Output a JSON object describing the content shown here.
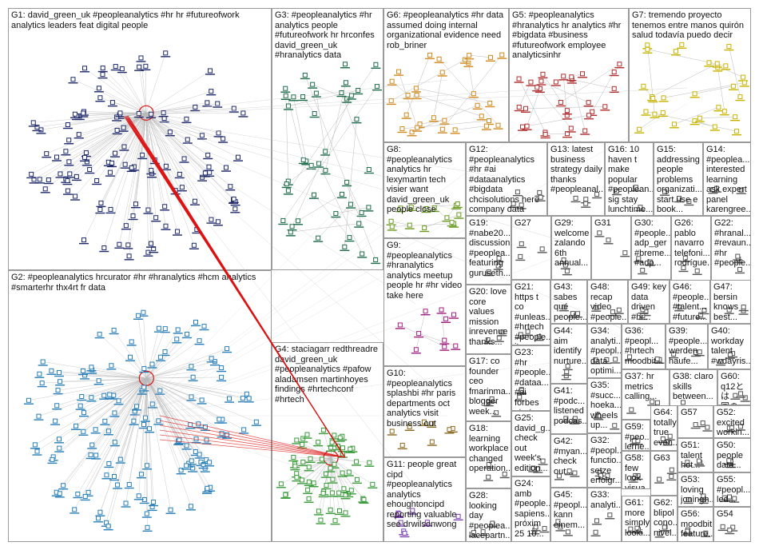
{
  "groups": [
    {
      "id": "G1",
      "label": "G1: david_green_uk #peopleanalytics #hr hr #futureofwork\nanalytics leaders feat digital people",
      "color": "#1f2a6b",
      "nodes": 120,
      "hub": true
    },
    {
      "id": "G2",
      "label": "G2: #peopleanalytics hrcurator #hr #hranalytics #hcm analytics\n#smarterhr thx4rt fr data",
      "color": "#2a7fb8",
      "nodes": 140,
      "hub": true
    },
    {
      "id": "G3",
      "label": "G3: #peopleanalytics #hr\nanalytics people\n#futureofwork hr hrconfes\ndavid_green_uk\n#hranalytics data",
      "color": "#1e6b4a",
      "nodes": 45,
      "hub": false
    },
    {
      "id": "G4",
      "label": "G4: staciagarr redthreadre\ndavid_green_uk\n#peopleanalytics #pafow\naladamsen martinhoyes\nfindings #hrtechconf\n#hrtech",
      "color": "#3a9a3a",
      "nodes": 60,
      "hub": true
    },
    {
      "id": "G5",
      "label": "G5: #peopleanalytics\n#hranalytics hr analytics #hr\n#bigdata #business\n#futureofwork employee\nanalyticsinhr",
      "color": "#b03030",
      "nodes": 30,
      "hub": false
    },
    {
      "id": "G6",
      "label": "G6: #peopleanalytics #hr data\nassumed doing internal\norganizational evidence need\nrob_briner",
      "color": "#d08a20",
      "nodes": 30,
      "hub": false
    },
    {
      "id": "G7",
      "label": "G7: tremendo proyecto\ntenemos entre manos quirón\nsalud todavía puedo decir",
      "color": "#c8b400",
      "nodes": 30,
      "hub": false
    },
    {
      "id": "G8",
      "label": "G8:\n#peopleanalytics\nanalytics hr\nlexymartin tech\nvisier want\ndavid_green_uk\npeople close",
      "color": "#6a9a20",
      "nodes": 14,
      "hub": false
    },
    {
      "id": "G9",
      "label": "G9:\n#peopleanalytics\n#hranalytics\nanalytics meetup\npeople hr #hr video\ntake here",
      "color": "#a02080",
      "nodes": 10,
      "hub": false
    },
    {
      "id": "G10",
      "label": "G10:\n#peopleanalytics\nsplashbi #hr paris\ndepartments oct\nanalytics visit\nbusiness out",
      "color": "#8a6a20",
      "nodes": 8,
      "hub": false
    },
    {
      "id": "G11",
      "label": "G11: people great\ncipd\n#peopleanalytics\nanalytics\nehoughtoncipd\nreporting valuable\nsee drwilsonwong",
      "color": "#7a40b0",
      "nodes": 8,
      "hub": false
    },
    {
      "id": "G12",
      "label": "G12:\n#peopleanalytics\n#hr #ai\n#dataanalytics\n#bigdata\nchcisolutions here\ncompany data",
      "color": "#555555",
      "nodes": 5,
      "hub": false
    },
    {
      "id": "G13",
      "label": "G13: latest\nbusiness\nstrategy daily\nthanks\n#peopleanal...",
      "color": "#555555",
      "nodes": 4,
      "hub": false
    },
    {
      "id": "G14",
      "label": "G14:\n#peoplea...\ninterested\nlearning\nask expert\npanel\nkarengree...",
      "color": "#555555",
      "nodes": 3,
      "hub": false
    },
    {
      "id": "G15",
      "label": "G15:\naddressing\npeople\nproblems\norganizati...\nstart use e\nbook...",
      "color": "#555555",
      "nodes": 3,
      "hub": false
    },
    {
      "id": "G16",
      "label": "G16: 10\nhaven t\nmake\npopular\n#peoplean...\nsig stay\nlunchtime...",
      "color": "#555555",
      "nodes": 3,
      "hub": false
    },
    {
      "id": "G17",
      "label": "G17: co\nfounder\nceo\nfmarinma...\nblogger\nweek...",
      "color": "#555555",
      "nodes": 3,
      "hub": false
    },
    {
      "id": "G18",
      "label": "G18:\nlearning\nworkplace\nchanged\noperation...",
      "color": "#555555",
      "nodes": 3,
      "hub": false
    },
    {
      "id": "G19",
      "label": "G19:\n#nabe20...\ndiscussion\n#peoplea...\nfeaturing\nguruseth...",
      "color": "#555555",
      "nodes": 3,
      "hub": false
    },
    {
      "id": "G20",
      "label": "G20: love\ncore\nvalues\nmission\ninrevenue\nthanks...",
      "color": "#555555",
      "nodes": 3,
      "hub": false
    },
    {
      "id": "G21",
      "label": "G21:\nhttps t co\n#unleas...\n#hrtech\n#people...\nitunes...",
      "color": "#555555",
      "nodes": 3,
      "hub": false
    },
    {
      "id": "G22",
      "label": "G22:\n#hranal...\n#revaun...\n#hr\n#people...",
      "color": "#555555",
      "nodes": 3,
      "hub": false
    },
    {
      "id": "G23",
      "label": "G23: #hr\n#people...\n#dataa...\n#ai\nforbes\nstrategy...",
      "color": "#555555",
      "nodes": 3,
      "hub": false
    },
    {
      "id": "G24",
      "label": "G24:\namb\n#people...\nsapiens...\npróxim\n25 10...",
      "color": "#555555",
      "nodes": 3,
      "hub": false
    },
    {
      "id": "G25",
      "label": "G25:\ndavid_g...\ncheck\nout\nweek's\nedition...",
      "color": "#555555",
      "nodes": 3,
      "hub": false
    },
    {
      "id": "G26",
      "label": "G26:\npablo\nnavarro\ntelefoni...\nrodrígue...",
      "color": "#555555",
      "nodes": 3,
      "hub": false
    },
    {
      "id": "G27",
      "label": "G27",
      "color": "#555555",
      "nodes": 3,
      "hub": false
    },
    {
      "id": "G28",
      "label": "G28:\nlooking\nday\n#peoplea...\nlacepartn...",
      "color": "#555555",
      "nodes": 3,
      "hub": false
    },
    {
      "id": "G29",
      "label": "G29:\nwelcome\nzalando\n6th\nannual...",
      "color": "#555555",
      "nodes": 3,
      "hub": false
    },
    {
      "id": "G30",
      "label": "G30:\n#people...\nadp_ger\n#breme...\n#adp...",
      "color": "#555555",
      "nodes": 3,
      "hub": false
    },
    {
      "id": "G31",
      "label": "G31",
      "color": "#555555",
      "nodes": 3,
      "hub": false
    },
    {
      "id": "G32",
      "label": "G32:\n#peopl...\nfunctio...\nsetze\nerfolgr...",
      "color": "#555555",
      "nodes": 3,
      "hub": false
    },
    {
      "id": "G33",
      "label": "G33:\nanalyti...",
      "color": "#555555",
      "nodes": 3,
      "hub": false
    },
    {
      "id": "G34",
      "label": "G34:\nanalyti...\n#peopl...\ndata\noptimi...",
      "color": "#555555",
      "nodes": 3,
      "hub": false
    },
    {
      "id": "G35",
      "label": "G35:\n#succ...\nhoeka...\nwheels\nup...",
      "color": "#555555",
      "nodes": 3,
      "hub": false
    },
    {
      "id": "G36",
      "label": "G36:\n#peopl...\n#hrtech\nmoodbit...",
      "color": "#555555",
      "nodes": 3,
      "hub": false
    },
    {
      "id": "G37",
      "label": "G37: hr\nmetrics\ncalling...",
      "color": "#555555",
      "nodes": 3,
      "hub": false
    },
    {
      "id": "G38",
      "label": "G38: claro\nskills\nbetween...",
      "color": "#555555",
      "nodes": 3,
      "hub": false
    },
    {
      "id": "G39",
      "label": "G39:\n#people...\nwerden\nhaufe...",
      "color": "#555555",
      "nodes": 3,
      "hub": false
    },
    {
      "id": "G40",
      "label": "G40:\nworkday\ntalent\n#wdayris...",
      "color": "#555555",
      "nodes": 3,
      "hub": false
    },
    {
      "id": "G41",
      "label": "G41:\n#podc...\nlistened\npodcas...",
      "color": "#555555",
      "nodes": 3,
      "hub": false
    },
    {
      "id": "G42",
      "label": "G42:\n#myan...\ncheck\nout...",
      "color": "#555555",
      "nodes": 3,
      "hub": false
    },
    {
      "id": "G43",
      "label": "G43:\nsabes\nqué\npeople...",
      "color": "#555555",
      "nodes": 3,
      "hub": false
    },
    {
      "id": "G44",
      "label": "G44:\naim\nidentify\nnurture...",
      "color": "#555555",
      "nodes": 3,
      "hub": false
    },
    {
      "id": "G45",
      "label": "G45:\n#peopl...\nkann\neinem...",
      "color": "#555555",
      "nodes": 3,
      "hub": false
    },
    {
      "id": "G46",
      "label": "G46:\n#people...\n#talent...\n#future...",
      "color": "#555555",
      "nodes": 3,
      "hub": false
    },
    {
      "id": "G47",
      "label": "G47:\nbersin\nknows\nbest...",
      "color": "#555555",
      "nodes": 3,
      "hub": false
    },
    {
      "id": "G48",
      "label": "G48:\nrecap\nvideo\n#people...",
      "color": "#555555",
      "nodes": 3,
      "hub": false
    },
    {
      "id": "G49",
      "label": "G49: key\ndata\ndriven\n#hr...",
      "color": "#555555",
      "nodes": 3,
      "hub": false
    },
    {
      "id": "G50",
      "label": "G50:\npeople\ndata...",
      "color": "#555555",
      "nodes": 3,
      "hub": false
    },
    {
      "id": "G51",
      "label": "G51:\ntalent\nhot...",
      "color": "#555555",
      "nodes": 3,
      "hub": false
    },
    {
      "id": "G52",
      "label": "G52:\nexcited\nworkin...",
      "color": "#555555",
      "nodes": 3,
      "hub": false
    },
    {
      "id": "G53",
      "label": "G53:\nloving\njoningh...",
      "color": "#555555",
      "nodes": 3,
      "hub": false
    },
    {
      "id": "G54",
      "label": "G54",
      "color": "#555555",
      "nodes": 3,
      "hub": false
    },
    {
      "id": "G55",
      "label": "G55:\n#peopl...\nled...",
      "color": "#555555",
      "nodes": 3,
      "hub": false
    },
    {
      "id": "G56",
      "label": "G56:\nmoodbit\nfeature...",
      "color": "#555555",
      "nodes": 3,
      "hub": false
    },
    {
      "id": "G57",
      "label": "G57",
      "color": "#555555",
      "nodes": 3,
      "hub": false
    },
    {
      "id": "G58",
      "label": "G58:\nfew\nlook\nvisua...",
      "color": "#555555",
      "nodes": 3,
      "hub": false
    },
    {
      "id": "G59",
      "label": "G59:\n#peo...\nlerne...\n#alg...",
      "color": "#555555",
      "nodes": 3,
      "hub": false
    },
    {
      "id": "G60",
      "label": "G60:\nq12とは\n国の調...",
      "color": "#555555",
      "nodes": 3,
      "hub": false
    },
    {
      "id": "G61",
      "label": "G61:\nmore\nsimply\nlooki...",
      "color": "#555555",
      "nodes": 3,
      "hub": false
    },
    {
      "id": "G62",
      "label": "G62:\nblipol\ncono...\nnivel...",
      "color": "#555555",
      "nodes": 3,
      "hub": false
    },
    {
      "id": "G63",
      "label": "G63",
      "color": "#555555",
      "nodes": 3,
      "hub": false
    },
    {
      "id": "G64",
      "label": "G64:\ntotally\ntrue\neven...",
      "color": "#555555",
      "nodes": 3,
      "hub": false
    }
  ],
  "colors": {
    "panel_border": "#9a9a9a",
    "edge": "#b9b9b9",
    "highlight_edge": "#dd1111"
  }
}
